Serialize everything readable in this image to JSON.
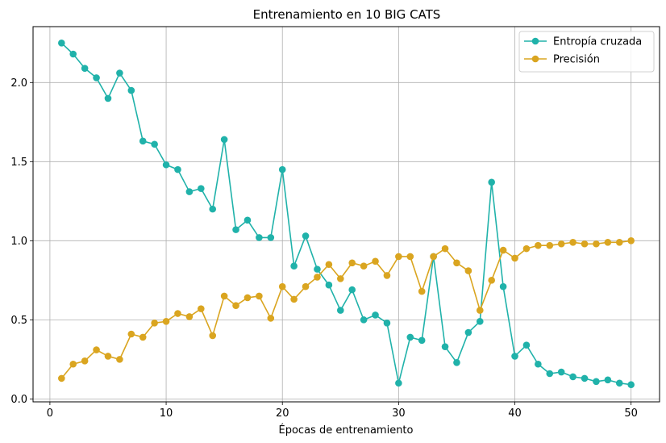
{
  "chart_data": {
    "type": "line",
    "title": "Entrenamiento en 10 BIG CATS",
    "xlabel": "Épocas de entrenamiento",
    "ylabel": "",
    "xlim": [
      -1.45,
      52.45
    ],
    "ylim": [
      -0.0185,
      2.3535
    ],
    "xticks": [
      0,
      10,
      20,
      30,
      40,
      50
    ],
    "xtick_labels": [
      "0",
      "10",
      "20",
      "30",
      "40",
      "50"
    ],
    "yticks": [
      0.0,
      0.5,
      1.0,
      1.5,
      2.0
    ],
    "ytick_labels": [
      "0.0",
      "0.5",
      "1.0",
      "1.5",
      "2.0"
    ],
    "grid": true,
    "legend_position": "top-right",
    "x": [
      1,
      2,
      3,
      4,
      5,
      6,
      7,
      8,
      9,
      10,
      11,
      12,
      13,
      14,
      15,
      16,
      17,
      18,
      19,
      20,
      21,
      22,
      23,
      24,
      25,
      26,
      27,
      28,
      29,
      30,
      31,
      32,
      33,
      34,
      35,
      36,
      37,
      38,
      39,
      40,
      41,
      42,
      43,
      44,
      45,
      46,
      47,
      48,
      49,
      50
    ],
    "series": [
      {
        "name": "Entropía cruzada",
        "color": "#20b2aa",
        "values": [
          2.25,
          2.18,
          2.09,
          2.03,
          1.9,
          2.06,
          1.95,
          1.63,
          1.61,
          1.48,
          1.45,
          1.31,
          1.33,
          1.2,
          1.64,
          1.07,
          1.13,
          1.02,
          1.02,
          1.45,
          0.84,
          1.03,
          0.82,
          0.72,
          0.56,
          0.69,
          0.5,
          0.53,
          0.48,
          0.1,
          0.39,
          0.37,
          0.9,
          0.33,
          0.23,
          0.42,
          0.49,
          1.37,
          0.71,
          0.27,
          0.34,
          0.22,
          0.16,
          0.17,
          0.14,
          0.13,
          0.11,
          0.12,
          0.1,
          0.09
        ]
      },
      {
        "name": "Precisión",
        "color": "#daa520",
        "values": [
          0.13,
          0.22,
          0.24,
          0.31,
          0.27,
          0.25,
          0.41,
          0.39,
          0.48,
          0.49,
          0.54,
          0.52,
          0.57,
          0.4,
          0.65,
          0.59,
          0.64,
          0.65,
          0.51,
          0.71,
          0.63,
          0.71,
          0.77,
          0.85,
          0.76,
          0.86,
          0.84,
          0.87,
          0.78,
          0.9,
          0.9,
          0.68,
          0.9,
          0.95,
          0.86,
          0.81,
          0.56,
          0.75,
          0.94,
          0.89,
          0.95,
          0.97,
          0.97,
          0.98,
          0.99,
          0.98,
          0.98,
          0.99,
          0.99,
          1.0
        ]
      }
    ]
  }
}
